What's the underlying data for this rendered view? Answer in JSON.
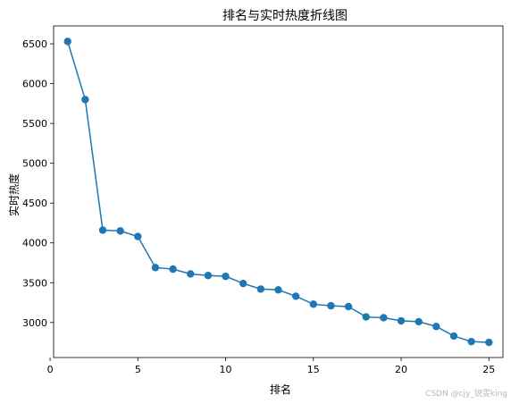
{
  "chart_data": {
    "type": "line",
    "title": "排名与实时热度折线图",
    "xlabel": "排名",
    "ylabel": "实时热度",
    "x": [
      1,
      2,
      3,
      4,
      5,
      6,
      7,
      8,
      9,
      10,
      11,
      12,
      13,
      14,
      15,
      16,
      17,
      18,
      19,
      20,
      21,
      22,
      23,
      24,
      25
    ],
    "series": [
      {
        "values": [
          6530,
          5800,
          4160,
          4150,
          4080,
          3690,
          3670,
          3610,
          3590,
          3580,
          3490,
          3420,
          3410,
          3330,
          3230,
          3210,
          3200,
          3070,
          3060,
          3020,
          3010,
          2950,
          2830,
          2760,
          2750
        ],
        "color": "#1f77b4",
        "marker": "circle"
      }
    ],
    "xlim": [
      0.2,
      25.8
    ],
    "ylim": [
      2560,
      6725
    ],
    "xticks": [
      0,
      5,
      10,
      15,
      20,
      25
    ],
    "yticks": [
      3000,
      3500,
      4000,
      4500,
      5000,
      5500,
      6000,
      6500
    ],
    "grid": false,
    "legend": "none"
  },
  "watermark": "CSDN @cjy_锐雯king"
}
